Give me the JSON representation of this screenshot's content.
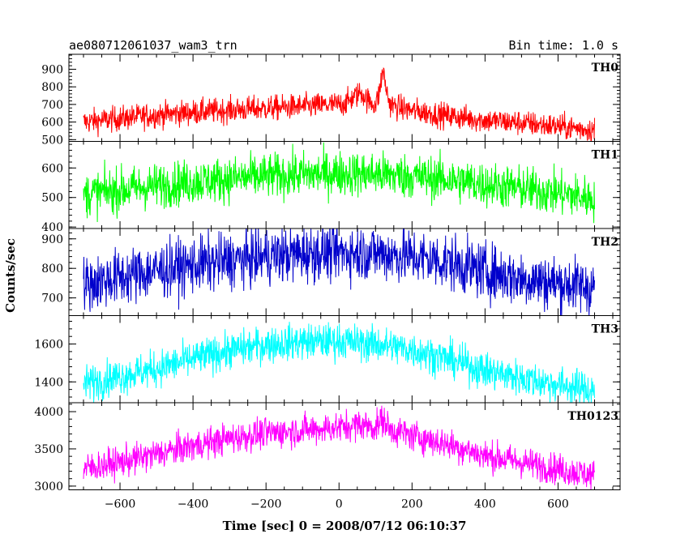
{
  "header": {
    "title": "ae080712061037_wam3_trn",
    "bin_time": "Bin time: 1.0 s"
  },
  "chart_data": {
    "type": "line",
    "xlabel": "Time [sec] 0 = 2008/07/12 06:10:37",
    "ylabel": "Counts/sec",
    "xlim": [
      -740,
      770
    ],
    "x_ticks": [
      -600,
      -400,
      -200,
      0,
      200,
      400,
      600
    ],
    "x_tick_labels": [
      "−600",
      "−400",
      "−200",
      "0",
      "200",
      "400",
      "600"
    ],
    "panels": [
      {
        "name": "TH0",
        "color": "#ff0000",
        "ylim": [
          490,
          985
        ],
        "y_ticks": [
          500,
          600,
          700,
          800,
          900
        ],
        "y_tick_labels": [
          "500",
          "600",
          "700",
          "800",
          "900"
        ],
        "x": [
          -700,
          -600,
          -500,
          -400,
          -300,
          -200,
          -100,
          0,
          20,
          40,
          60,
          80,
          100,
          110,
          120,
          130,
          140,
          160,
          200,
          300,
          400,
          500,
          600,
          700
        ],
        "y": [
          600,
          620,
          640,
          655,
          668,
          678,
          688,
          700,
          710,
          740,
          770,
          720,
          700,
          760,
          900,
          780,
          700,
          685,
          665,
          635,
          610,
          595,
          575,
          555
        ],
        "noise": 36
      },
      {
        "name": "TH1",
        "color": "#00ff00",
        "ylim": [
          395,
          690
        ],
        "y_ticks": [
          400,
          500,
          600
        ],
        "y_tick_labels": [
          "400",
          "500",
          "600"
        ],
        "x": [
          -700,
          -600,
          -500,
          -400,
          -300,
          -200,
          -100,
          0,
          100,
          200,
          300,
          400,
          500,
          600,
          700
        ],
        "y": [
          510,
          525,
          540,
          553,
          563,
          572,
          578,
          582,
          579,
          572,
          560,
          545,
          530,
          515,
          495
        ],
        "noise": 38
      },
      {
        "name": "TH2",
        "color": "#0000cc",
        "ylim": [
          640,
          935
        ],
        "y_ticks": [
          700,
          800,
          900
        ],
        "y_tick_labels": [
          "700",
          "800",
          "900"
        ],
        "x": [
          -700,
          -600,
          -500,
          -400,
          -300,
          -200,
          -100,
          0,
          100,
          200,
          300,
          400,
          500,
          600,
          700
        ],
        "y": [
          745,
          770,
          792,
          810,
          826,
          840,
          850,
          855,
          852,
          840,
          820,
          790,
          765,
          750,
          735
        ],
        "noise": 48
      },
      {
        "name": "TH3",
        "color": "#00ffff",
        "ylim": [
          1290,
          1750
        ],
        "y_ticks": [
          1400,
          1600
        ],
        "y_tick_labels": [
          "1400",
          "1600"
        ],
        "x": [
          -700,
          -600,
          -500,
          -400,
          -300,
          -200,
          -100,
          0,
          100,
          200,
          300,
          400,
          500,
          600,
          700
        ],
        "y": [
          1390,
          1430,
          1470,
          1520,
          1565,
          1598,
          1612,
          1615,
          1600,
          1570,
          1520,
          1460,
          1420,
          1385,
          1355
        ],
        "noise": 48
      },
      {
        "name": "TH0123",
        "color": "#ff00ff",
        "ylim": [
          2950,
          4120
        ],
        "y_ticks": [
          3000,
          3500,
          4000
        ],
        "y_tick_labels": [
          "3000",
          "3500",
          "4000"
        ],
        "x": [
          -700,
          -600,
          -500,
          -400,
          -300,
          -200,
          -100,
          0,
          60,
          100,
          120,
          140,
          200,
          300,
          400,
          500,
          600,
          700
        ],
        "y": [
          3230,
          3320,
          3430,
          3540,
          3640,
          3710,
          3750,
          3790,
          3830,
          3790,
          3900,
          3760,
          3680,
          3560,
          3410,
          3320,
          3230,
          3140
        ],
        "noise": 105
      }
    ]
  }
}
